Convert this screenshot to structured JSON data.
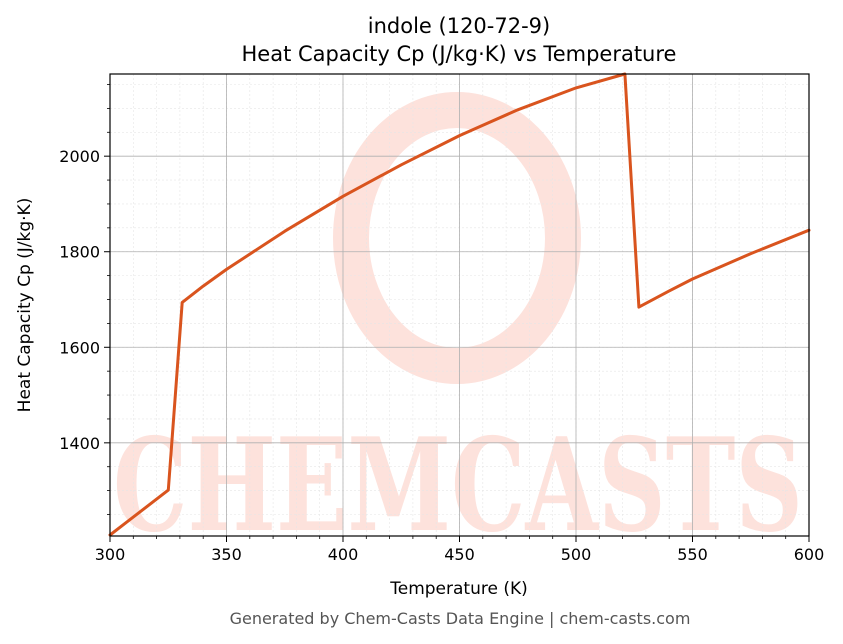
{
  "chart_data": {
    "type": "line",
    "title": "indole (120-72-9)",
    "subtitle": "Heat Capacity Cp (J/kg·K) vs Temperature",
    "xlabel": "Temperature (K)",
    "ylabel": "Heat Capacity Cp (J/kg·K)",
    "xlim": [
      300,
      600
    ],
    "ylim": [
      1205,
      2172
    ],
    "xticks": [
      300,
      350,
      400,
      450,
      500,
      550,
      600
    ],
    "yticks": [
      1400,
      1600,
      1800,
      2000
    ],
    "grid": true,
    "series": [
      {
        "color": "#d9541e",
        "x": [
          300,
          325,
          331,
          340,
          350,
          375,
          400,
          425,
          450,
          475,
          500,
          521,
          527,
          540,
          550,
          575,
          600
        ],
        "y": [
          1207,
          1301,
          1694,
          1728,
          1763,
          1843,
          1916,
          1982,
          2043,
          2097,
          2143,
          2172,
          1684,
          1718,
          1743,
          1796,
          1845
        ]
      }
    ]
  },
  "watermark": {
    "text": "CHEMCASTS",
    "color": "#fde2dc"
  },
  "footer": {
    "text": "Generated by Chem-Casts Data Engine | chem-casts.com"
  }
}
